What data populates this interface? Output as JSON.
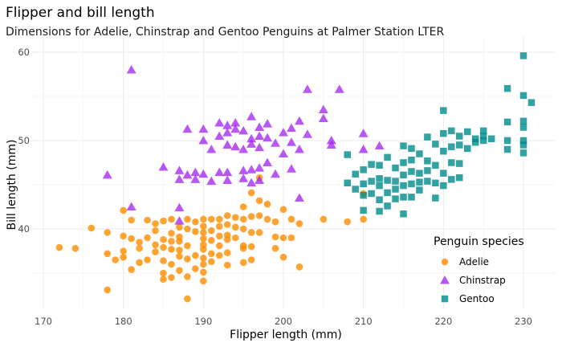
{
  "chart_data": {
    "type": "scatter",
    "title": "Flipper and bill length",
    "subtitle": "Dimensions for Adelie, Chinstrap and Gentoo Penguins at Palmer Station LTER",
    "xlabel": "Flipper length (mm)",
    "ylabel": "Bill length (mm)",
    "xlim": [
      170,
      231
    ],
    "ylim": [
      32,
      60
    ],
    "xticks": [
      170,
      180,
      190,
      200,
      210,
      220,
      230
    ],
    "yticks": [
      40,
      50,
      60
    ],
    "grid": true,
    "legend": {
      "title": "Penguin species",
      "placement": "bottom-right"
    },
    "series": [
      {
        "name": "Adelie",
        "marker": "circle",
        "color": "#FF8C00",
        "points": [
          [
            172,
            37.9
          ],
          [
            174,
            37.8
          ],
          [
            176,
            40.1
          ],
          [
            178,
            39.6
          ],
          [
            178,
            37.2
          ],
          [
            178,
            33.1
          ],
          [
            179,
            36.5
          ],
          [
            180,
            42.1
          ],
          [
            180,
            39.2
          ],
          [
            180,
            37.5
          ],
          [
            180,
            36.8
          ],
          [
            181,
            35.4
          ],
          [
            181,
            38.9
          ],
          [
            181,
            41.0
          ],
          [
            182,
            38.5
          ],
          [
            182,
            37.8
          ],
          [
            182,
            36.2
          ],
          [
            183,
            41.0
          ],
          [
            183,
            39.0
          ],
          [
            183,
            36.5
          ],
          [
            184,
            40.6
          ],
          [
            184,
            38.2
          ],
          [
            184,
            37.4
          ],
          [
            184,
            39.8
          ],
          [
            185,
            40.9
          ],
          [
            185,
            38.8
          ],
          [
            185,
            37.9
          ],
          [
            185,
            36.4
          ],
          [
            185,
            35.0
          ],
          [
            185,
            34.3
          ],
          [
            186,
            41.1
          ],
          [
            186,
            39.5
          ],
          [
            186,
            38.6
          ],
          [
            186,
            37.7
          ],
          [
            186,
            36.0
          ],
          [
            186,
            34.5
          ],
          [
            187,
            40.2
          ],
          [
            187,
            39.1
          ],
          [
            187,
            37.6
          ],
          [
            187,
            36.9
          ],
          [
            187,
            35.3
          ],
          [
            187,
            38.6
          ],
          [
            188,
            41.1
          ],
          [
            188,
            40.0
          ],
          [
            188,
            38.1
          ],
          [
            188,
            36.6
          ],
          [
            188,
            34.6
          ],
          [
            188,
            32.1
          ],
          [
            189,
            39.7
          ],
          [
            189,
            37.0
          ],
          [
            189,
            35.5
          ],
          [
            189,
            40.8
          ],
          [
            190,
            41.1
          ],
          [
            190,
            40.3
          ],
          [
            190,
            39.6
          ],
          [
            190,
            38.9
          ],
          [
            190,
            38.2
          ],
          [
            190,
            37.7
          ],
          [
            190,
            36.7
          ],
          [
            190,
            36.0
          ],
          [
            190,
            35.1
          ],
          [
            190,
            34.1
          ],
          [
            191,
            41.1
          ],
          [
            191,
            39.8
          ],
          [
            191,
            38.7
          ],
          [
            191,
            37.2
          ],
          [
            191,
            36.3
          ],
          [
            192,
            41.1
          ],
          [
            192,
            40.3
          ],
          [
            192,
            39.2
          ],
          [
            192,
            38.1
          ],
          [
            192,
            37.0
          ],
          [
            193,
            41.5
          ],
          [
            193,
            40.5
          ],
          [
            193,
            39.3
          ],
          [
            193,
            38.8
          ],
          [
            193,
            37.3
          ],
          [
            193,
            35.9
          ],
          [
            194,
            41.3
          ],
          [
            194,
            40.2
          ],
          [
            194,
            39.0
          ],
          [
            195,
            42.5
          ],
          [
            195,
            41.1
          ],
          [
            195,
            40.0
          ],
          [
            195,
            38.1
          ],
          [
            195,
            37.8
          ],
          [
            195,
            36.2
          ],
          [
            196,
            44.1
          ],
          [
            196,
            41.4
          ],
          [
            196,
            39.6
          ],
          [
            196,
            38.0
          ],
          [
            196,
            36.5
          ],
          [
            197,
            45.8
          ],
          [
            197,
            43.2
          ],
          [
            197,
            41.5
          ],
          [
            197,
            39.6
          ],
          [
            198,
            42.8
          ],
          [
            198,
            41.1
          ],
          [
            199,
            40.8
          ],
          [
            199,
            39.1
          ],
          [
            199,
            37.8
          ],
          [
            200,
            42.2
          ],
          [
            200,
            39.0
          ],
          [
            200,
            36.8
          ],
          [
            201,
            41.1
          ],
          [
            201,
            39.0
          ],
          [
            202,
            40.6
          ],
          [
            202,
            35.7
          ],
          [
            205,
            41.1
          ],
          [
            208,
            40.8
          ],
          [
            210,
            44.0
          ],
          [
            210,
            41.1
          ]
        ]
      },
      {
        "name": "Chinstrap",
        "marker": "triangle",
        "color": "#A020F0",
        "points": [
          [
            178,
            46.1
          ],
          [
            181,
            58.0
          ],
          [
            181,
            42.5
          ],
          [
            185,
            47.0
          ],
          [
            187,
            46.6
          ],
          [
            187,
            45.6
          ],
          [
            187,
            42.4
          ],
          [
            187,
            40.9
          ],
          [
            188,
            51.3
          ],
          [
            188,
            46.1
          ],
          [
            189,
            46.4
          ],
          [
            189,
            45.6
          ],
          [
            190,
            51.3
          ],
          [
            190,
            50.0
          ],
          [
            190,
            46.2
          ],
          [
            191,
            49.0
          ],
          [
            191,
            45.4
          ],
          [
            192,
            52.0
          ],
          [
            192,
            50.5
          ],
          [
            192,
            46.4
          ],
          [
            193,
            51.7
          ],
          [
            193,
            50.9
          ],
          [
            193,
            49.5
          ],
          [
            193,
            46.4
          ],
          [
            193,
            45.5
          ],
          [
            194,
            52.0
          ],
          [
            194,
            51.3
          ],
          [
            194,
            49.3
          ],
          [
            195,
            51.1
          ],
          [
            195,
            49.0
          ],
          [
            195,
            46.6
          ],
          [
            195,
            45.7
          ],
          [
            196,
            52.7
          ],
          [
            196,
            50.2
          ],
          [
            196,
            49.6
          ],
          [
            196,
            46.7
          ],
          [
            196,
            45.2
          ],
          [
            197,
            51.5
          ],
          [
            197,
            50.5
          ],
          [
            197,
            49.2
          ],
          [
            197,
            46.9
          ],
          [
            197,
            45.5
          ],
          [
            198,
            51.9
          ],
          [
            198,
            50.3
          ],
          [
            198,
            47.5
          ],
          [
            199,
            49.7
          ],
          [
            199,
            46.2
          ],
          [
            200,
            50.9
          ],
          [
            200,
            48.5
          ],
          [
            201,
            51.4
          ],
          [
            201,
            49.8
          ],
          [
            201,
            46.8
          ],
          [
            202,
            52.2
          ],
          [
            202,
            49.0
          ],
          [
            203,
            55.8
          ],
          [
            203,
            50.7
          ],
          [
            205,
            53.5
          ],
          [
            205,
            52.5
          ],
          [
            206,
            50.0
          ],
          [
            206,
            49.5
          ],
          [
            207,
            55.8
          ],
          [
            202,
            43.5
          ],
          [
            210,
            49.0
          ],
          [
            210,
            50.8
          ],
          [
            212,
            49.4
          ]
        ]
      },
      {
        "name": "Gentoo",
        "marker": "square",
        "color": "#008B8B",
        "points": [
          [
            208,
            48.4
          ],
          [
            208,
            45.2
          ],
          [
            209,
            46.2
          ],
          [
            209,
            44.5
          ],
          [
            210,
            45.1
          ],
          [
            210,
            43.8
          ],
          [
            210,
            42.1
          ],
          [
            210,
            46.7
          ],
          [
            211,
            47.3
          ],
          [
            211,
            45.4
          ],
          [
            211,
            44.0
          ],
          [
            212,
            47.2
          ],
          [
            212,
            45.7
          ],
          [
            212,
            43.3
          ],
          [
            212,
            42.0
          ],
          [
            213,
            48.1
          ],
          [
            213,
            45.5
          ],
          [
            213,
            44.1
          ],
          [
            214,
            46.9
          ],
          [
            214,
            45.4
          ],
          [
            214,
            43.4
          ],
          [
            215,
            49.4
          ],
          [
            215,
            47.5
          ],
          [
            215,
            46.1
          ],
          [
            215,
            44.9
          ],
          [
            215,
            43.6
          ],
          [
            215,
            41.7
          ],
          [
            216,
            49.1
          ],
          [
            216,
            47.8
          ],
          [
            216,
            46.5
          ],
          [
            216,
            45.1
          ],
          [
            216,
            43.6
          ],
          [
            217,
            48.5
          ],
          [
            217,
            46.3
          ],
          [
            217,
            44.4
          ],
          [
            218,
            50.4
          ],
          [
            218,
            47.7
          ],
          [
            218,
            46.6
          ],
          [
            218,
            45.4
          ],
          [
            219,
            49.6
          ],
          [
            219,
            47.2
          ],
          [
            219,
            45.2
          ],
          [
            220,
            53.4
          ],
          [
            220,
            50.8
          ],
          [
            220,
            48.8
          ],
          [
            220,
            46.3
          ],
          [
            220,
            44.9
          ],
          [
            221,
            51.1
          ],
          [
            221,
            49.3
          ],
          [
            221,
            47.5
          ],
          [
            221,
            45.6
          ],
          [
            222,
            50.5
          ],
          [
            222,
            49.5
          ],
          [
            222,
            47.4
          ],
          [
            222,
            45.8
          ],
          [
            223,
            51.0
          ],
          [
            223,
            49.1
          ],
          [
            224,
            50.2
          ],
          [
            224,
            49.8
          ],
          [
            225,
            51.1
          ],
          [
            225,
            50.5
          ],
          [
            225,
            50.0
          ],
          [
            226,
            50.2
          ],
          [
            228,
            55.9
          ],
          [
            228,
            52.1
          ],
          [
            228,
            50.0
          ],
          [
            228,
            49.0
          ],
          [
            230,
            59.6
          ],
          [
            230,
            55.1
          ],
          [
            230,
            52.2
          ],
          [
            230,
            50.0
          ],
          [
            230,
            49.5
          ],
          [
            230,
            48.6
          ],
          [
            231,
            54.3
          ],
          [
            230,
            51.5
          ],
          [
            212,
            44.9
          ],
          [
            213,
            42.6
          ],
          [
            214,
            44.5
          ],
          [
            217,
            45.3
          ],
          [
            219,
            43.5
          ]
        ]
      }
    ]
  }
}
